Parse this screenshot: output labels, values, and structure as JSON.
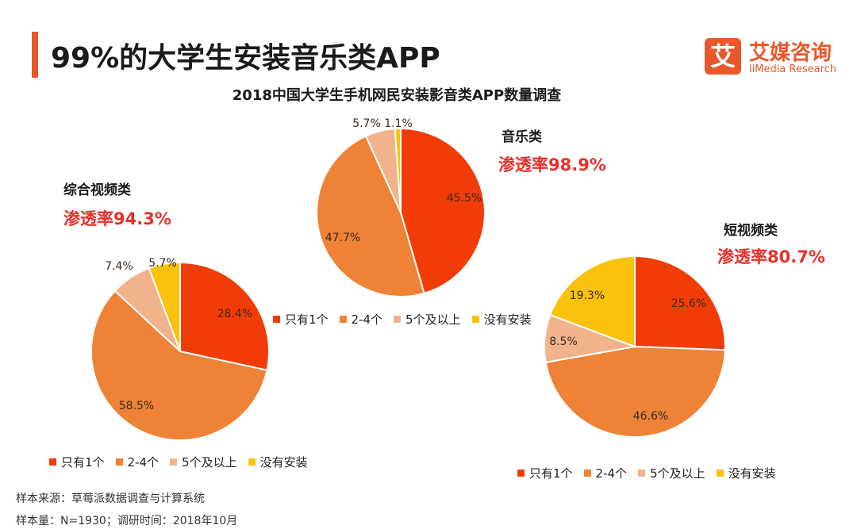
{
  "header": {
    "title": "99%的大学生安装音乐类APP",
    "logo_mark": "艾",
    "logo_cn": "艾媒咨询",
    "logo_en": "iiMedia Research"
  },
  "chart_title": "2018中国大学生手机网民安装影音类APP数量调查",
  "legend_labels": [
    "只有1个",
    "2-4个",
    "5个及以上",
    "没有安装"
  ],
  "colors": [
    "#f23c08",
    "#ee8236",
    "#f2b28c",
    "#fbc20d"
  ],
  "footer": {
    "source": "样本来源：草莓派数据调查与计算系统",
    "sample": "样本量：N=1930；调研时间：2018年10月"
  },
  "chart_data": [
    {
      "type": "pie",
      "heading": "音乐类",
      "rate": "渗透率98.9%",
      "categories": [
        "只有1个",
        "2-4个",
        "5个及以上",
        "没有安装"
      ],
      "values": [
        45.5,
        47.7,
        5.7,
        1.1
      ],
      "labels": [
        "45.5%",
        "47.7%",
        "5.7%",
        "1.1%"
      ],
      "legend": "bottom"
    },
    {
      "type": "pie",
      "heading": "综合视频类",
      "rate": "渗透率94.3%",
      "categories": [
        "只有1个",
        "2-4个",
        "5个及以上",
        "没有安装"
      ],
      "values": [
        28.4,
        58.5,
        7.4,
        5.7
      ],
      "labels": [
        "28.4%",
        "58.5%",
        "7.4%",
        "5.7%"
      ],
      "legend": "bottom"
    },
    {
      "type": "pie",
      "heading": "短视频类",
      "rate": "渗透率80.7%",
      "categories": [
        "只有1个",
        "2-4个",
        "5个及以上",
        "没有安装"
      ],
      "values": [
        25.6,
        46.6,
        8.5,
        19.3
      ],
      "labels": [
        "25.6%",
        "46.6%",
        "8.5%",
        "19.3%"
      ],
      "legend": "bottom"
    }
  ]
}
